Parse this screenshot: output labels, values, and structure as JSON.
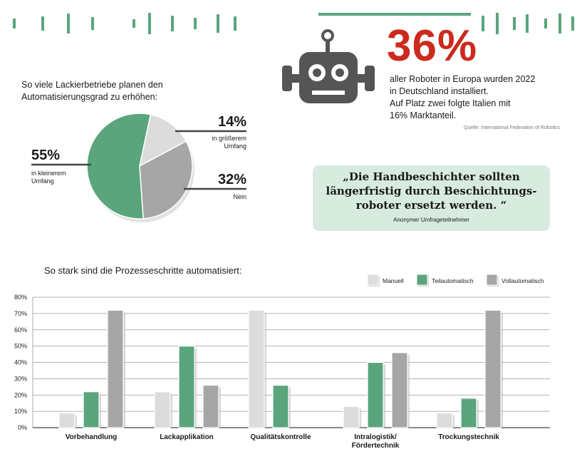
{
  "colors": {
    "manual": "#dcdcdc",
    "partial": "#5aa57c",
    "full": "#a6a6a6",
    "accent_red": "#cc2a1e",
    "accent_green": "#5aa57c",
    "quote_bg": "#d7ebdf"
  },
  "header_stat": {
    "value": "36%",
    "lines": [
      "aller Roboter in Europa wurden 2022",
      "in Deutschland installiert.",
      "Auf Platz zwei folgte Italien mit",
      "16% Marktanteil."
    ],
    "source": "Quelle: International Federation of Robotics",
    "icon": "robot-icon"
  },
  "quote": {
    "lines": [
      "„Die Handbeschichter sollten",
      "längerfristig durch Beschichtungs-",
      "roboter ersetzt werden. “"
    ],
    "author": "Anonymer Umfrageteilnehmer"
  },
  "chart_data": [
    {
      "type": "pie",
      "title": "So viele Lackierbetriebe planen den Automatisierungsgrad zu erhöhen:",
      "slices": [
        {
          "label_lines": [
            "in kleinerem",
            "Umfang"
          ],
          "value": 55,
          "value_label": "55%",
          "color": "#5aa57c"
        },
        {
          "label_lines": [
            "in größerem",
            "Umfang"
          ],
          "value": 14,
          "value_label": "14%",
          "color": "#dcdcdc"
        },
        {
          "label_lines": [
            "Nein"
          ],
          "value": 32,
          "value_label": "32%",
          "color": "#a6a6a6"
        }
      ]
    },
    {
      "type": "bar",
      "title": "So stark sind die Prozesseschritte automatisiert:",
      "categories": [
        [
          "Vorbehandlung"
        ],
        [
          "Lackapplikation"
        ],
        [
          "Qualitätskontrolle"
        ],
        [
          "Intralogistik/",
          "Fördertechnik"
        ],
        [
          "Trockungstechnik"
        ]
      ],
      "series": [
        {
          "name": "Manuell",
          "color": "#dcdcdc",
          "values": [
            9,
            22,
            72,
            13,
            9
          ]
        },
        {
          "name": "Teilautomatisch",
          "color": "#5aa57c",
          "values": [
            22,
            50,
            26,
            40,
            18
          ]
        },
        {
          "name": "Vollautomatisch",
          "color": "#a6a6a6",
          "values": [
            72,
            26,
            0,
            46,
            72
          ]
        }
      ],
      "ylim": [
        0,
        80
      ],
      "yticks": [
        0,
        10,
        20,
        30,
        40,
        50,
        60,
        70,
        80
      ],
      "tick_suffix": "%",
      "grid": true,
      "legend_position": "top-right"
    }
  ]
}
